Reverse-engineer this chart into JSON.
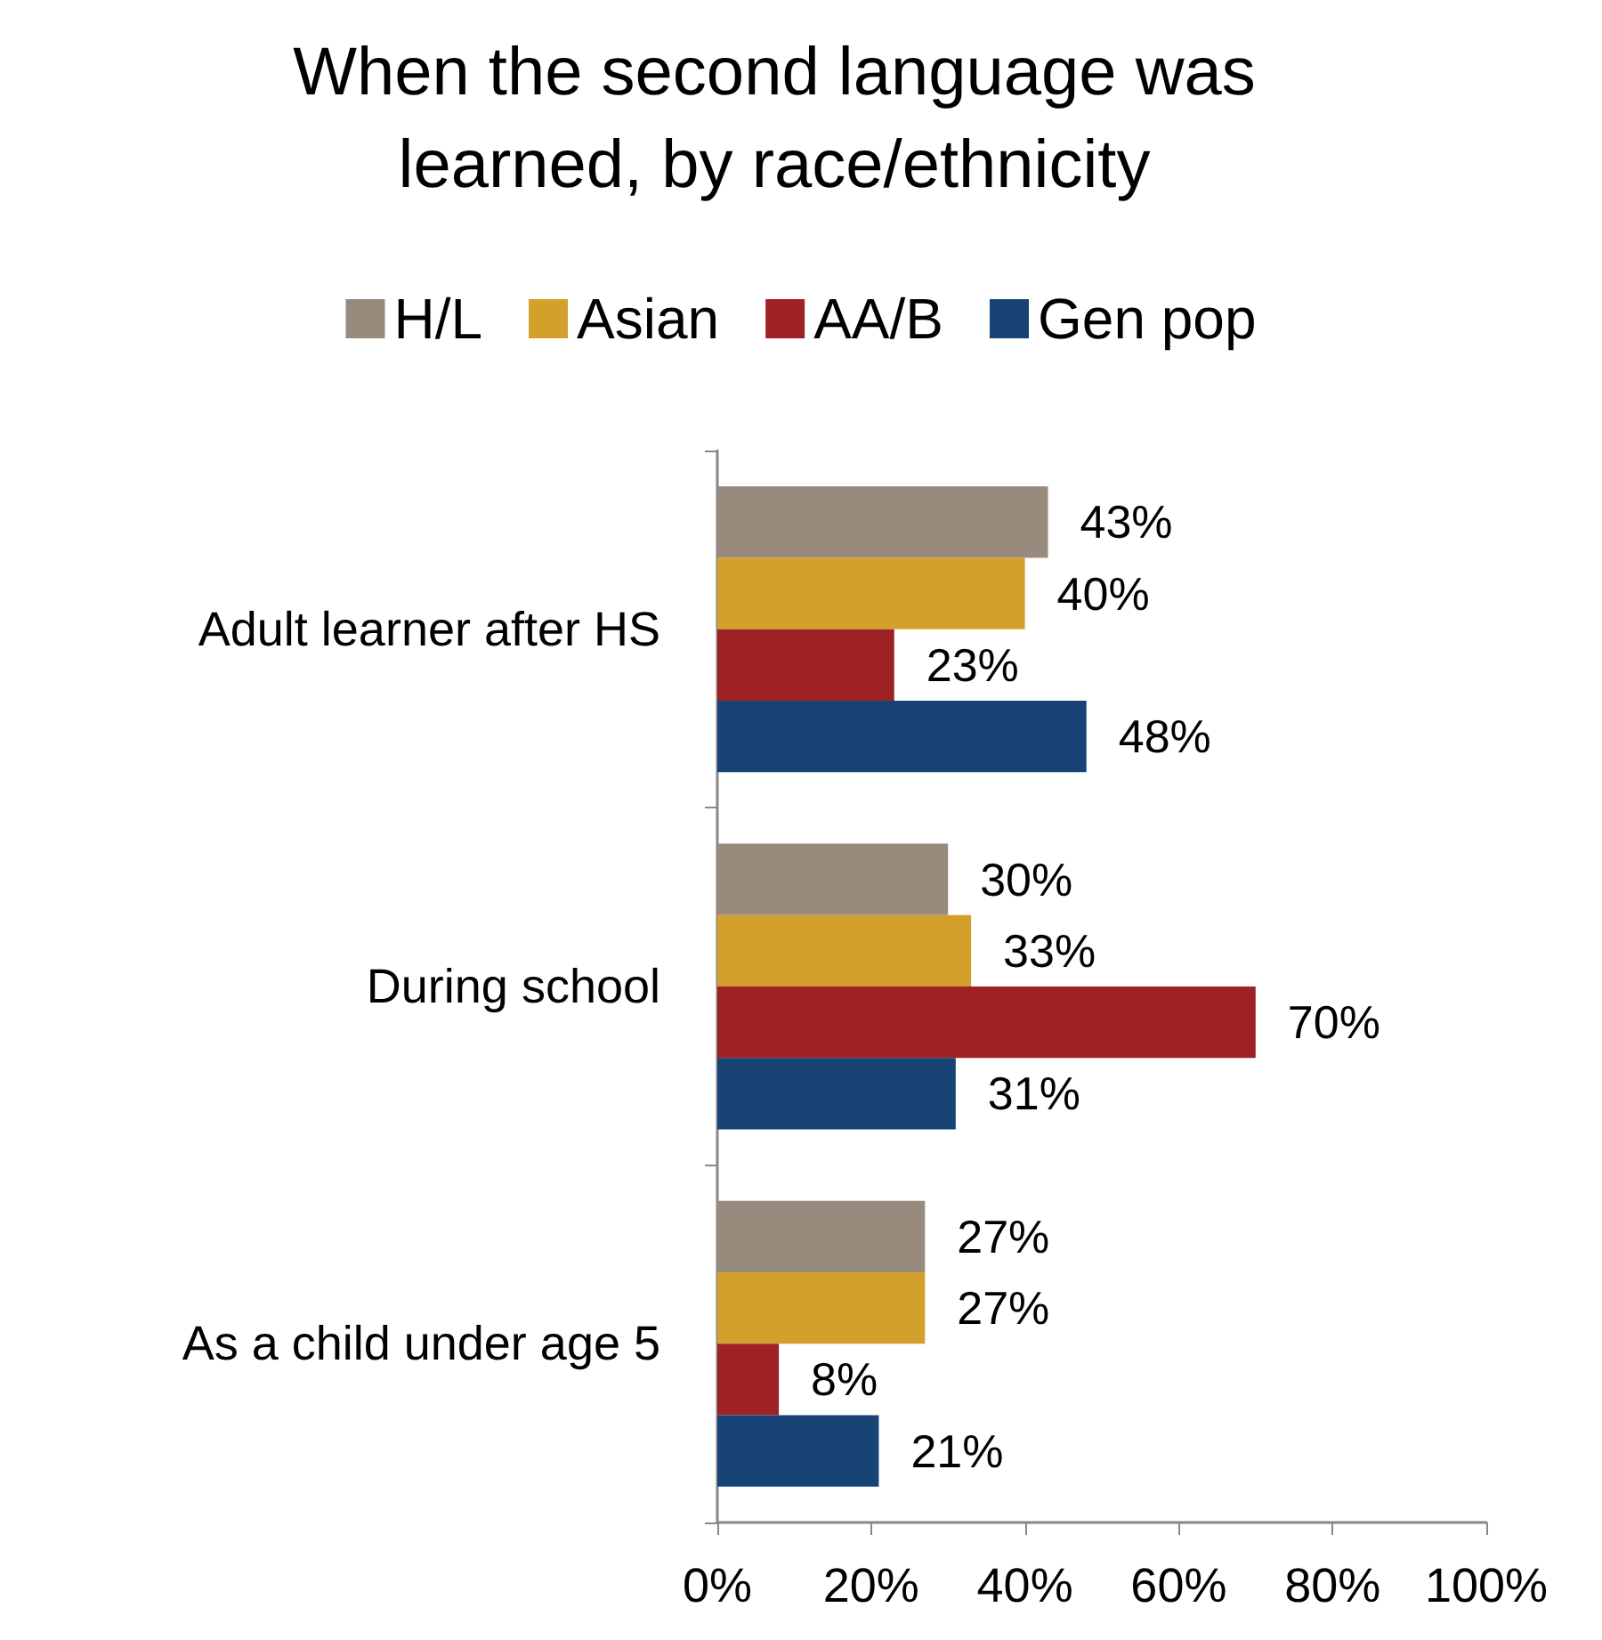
{
  "chart_data": {
    "type": "bar",
    "orientation": "horizontal",
    "title": "When the second language was\nlearned, by race/ethnicity",
    "categories": [
      "Adult learner after HS",
      "During school",
      "As a child under age 5"
    ],
    "series": [
      {
        "name": "H/L",
        "color": "#998a7e",
        "values": [
          43,
          30,
          27
        ],
        "value_labels": [
          "43%",
          "30%",
          "27%"
        ]
      },
      {
        "name": "Asian",
        "color": "#d4a02c",
        "values": [
          40,
          33,
          27
        ],
        "value_labels": [
          "40%",
          "33%",
          "27%"
        ]
      },
      {
        "name": "AA/B",
        "color": "#9e2224",
        "values": [
          23,
          70,
          8
        ],
        "value_labels": [
          "23%",
          "70%",
          "8%"
        ]
      },
      {
        "name": "Gen pop",
        "color": "#174475",
        "values": [
          48,
          31,
          21
        ],
        "value_labels": [
          "48%",
          "31%",
          "21%"
        ]
      }
    ],
    "xlim": [
      0,
      100
    ],
    "xticks": [
      {
        "value": 0,
        "label": "0%"
      },
      {
        "value": 20,
        "label": "20%"
      },
      {
        "value": 40,
        "label": "40%"
      },
      {
        "value": 60,
        "label": "60%"
      },
      {
        "value": 80,
        "label": "80%"
      },
      {
        "value": 100,
        "label": "100%"
      }
    ],
    "grid": false,
    "legend": "top"
  }
}
